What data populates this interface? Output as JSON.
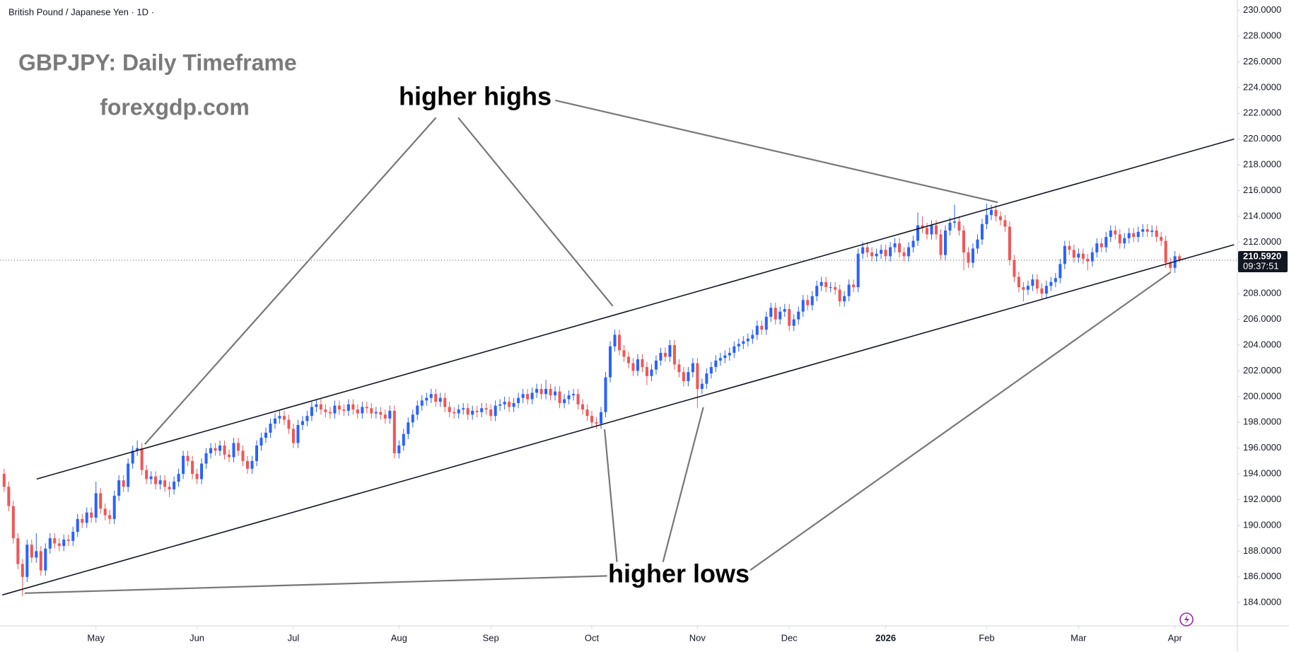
{
  "chart_data": {
    "type": "candlestick",
    "symbol": "British Pound / Japanese Yen · 1D ·",
    "title": "GBPJPY: Daily Timeframe",
    "subtitle": "forexgdp.com",
    "annotations": [
      "higher highs",
      "higher lows"
    ],
    "up_color": "#2962ff",
    "down_color": "#f05656",
    "trendline_color": "#131722",
    "open": [
      194.0,
      193.0,
      191.5,
      189.0,
      187.0,
      186.0,
      188.5,
      187.5,
      188.0,
      186.5,
      188.2,
      189.0,
      188.6,
      188.4,
      188.9,
      188.8,
      189.5,
      190.5,
      190.2,
      191.0,
      190.6,
      192.5,
      191.3,
      190.8,
      190.5,
      192.3,
      193.5,
      193.0,
      194.8,
      195.8,
      196.0,
      194.3,
      193.6,
      193.8,
      193.2,
      193.5,
      193.0,
      192.8,
      193.4,
      194.0,
      195.4,
      195.0,
      194.0,
      193.6,
      194.8,
      195.6,
      196.0,
      195.8,
      196.2,
      195.5,
      195.3,
      196.4,
      195.8,
      195.0,
      194.4,
      195.0,
      196.2,
      196.8,
      197.2,
      197.9,
      198.3,
      198.5,
      198.2,
      197.5,
      196.4,
      197.8,
      198.1,
      198.5,
      199.2,
      199.4,
      199.0,
      198.8,
      198.7,
      199.3,
      199.0,
      198.9,
      199.4,
      199.0,
      198.7,
      199.2,
      199.1,
      198.7,
      198.8,
      198.6,
      198.3,
      198.9,
      195.6,
      196.2,
      197.1,
      198.0,
      198.6,
      199.3,
      199.7,
      199.9,
      200.2,
      199.6,
      199.9,
      199.2,
      198.8,
      198.7,
      199.0,
      199.1,
      198.6,
      198.9,
      198.8,
      199.1,
      199.0,
      198.5,
      199.3,
      199.4,
      199.6,
      199.2,
      199.5,
      199.9,
      200.2,
      199.8,
      200.3,
      200.6,
      200.2,
      200.6,
      200.1,
      200.4,
      199.5,
      199.8,
      200.1,
      200.2,
      199.4,
      199.0,
      198.5,
      198.0,
      197.9,
      198.8,
      201.5,
      203.9,
      204.8,
      203.6,
      203.1,
      202.6,
      202.0,
      202.9,
      202.3,
      201.6,
      202.1,
      202.8,
      203.4,
      203.1,
      204.0,
      202.5,
      201.9,
      201.2,
      201.9,
      202.6,
      200.6,
      201.0,
      201.8,
      202.3,
      202.8,
      203.0,
      203.2,
      203.4,
      203.9,
      204.1,
      204.3,
      204.5,
      204.8,
      205.5,
      205.2,
      206.2,
      206.9,
      206.0,
      206.6,
      206.8,
      205.5,
      206.0,
      206.6,
      207.5,
      207.1,
      207.8,
      208.6,
      208.9,
      208.5,
      208.5,
      208.3,
      207.4,
      207.8,
      208.7,
      208.5,
      211.1,
      211.6,
      211.2,
      210.9,
      211.1,
      211.4,
      210.9,
      211.6,
      211.9,
      211.2,
      210.9,
      211.6,
      212.1,
      213.3,
      213.1,
      212.6,
      213.3,
      212.6,
      211.0,
      212.9,
      213.5,
      213.6,
      212.9,
      211.2,
      210.4,
      211.5,
      212.2,
      213.4,
      214.1,
      214.5,
      214.0,
      213.7,
      213.2,
      210.6,
      209.3,
      208.5,
      208.3,
      208.6,
      209.1,
      208.4,
      208.0,
      208.6,
      208.9,
      209.2,
      210.3,
      211.7,
      211.4,
      210.8,
      211.1,
      210.7,
      210.5,
      211.2,
      211.9,
      211.6,
      212.4,
      212.9,
      212.6,
      211.9,
      212.3,
      212.7,
      212.4,
      212.8,
      213.0,
      212.8,
      212.9,
      212.4,
      212.1,
      210.4,
      210.0,
      210.9
    ],
    "high": [
      194.4,
      193.4,
      191.9,
      189.4,
      187.4,
      188.9,
      188.9,
      189.4,
      188.4,
      188.6,
      189.4,
      189.4,
      189.0,
      189.3,
      189.3,
      189.9,
      190.9,
      190.9,
      191.4,
      191.4,
      193.4,
      192.9,
      191.7,
      191.2,
      192.7,
      193.9,
      193.9,
      195.2,
      196.2,
      196.6,
      196.4,
      194.7,
      194.2,
      194.2,
      193.9,
      193.9,
      193.4,
      193.8,
      194.4,
      195.8,
      195.8,
      195.4,
      194.4,
      195.2,
      196.0,
      196.4,
      196.4,
      196.6,
      196.6,
      195.9,
      196.8,
      196.8,
      196.2,
      195.4,
      195.4,
      196.6,
      197.2,
      197.6,
      198.3,
      198.7,
      198.9,
      198.9,
      198.6,
      197.9,
      198.2,
      198.5,
      198.9,
      199.6,
      199.8,
      199.8,
      199.4,
      199.2,
      199.7,
      199.7,
      199.4,
      199.8,
      199.8,
      199.4,
      199.6,
      199.6,
      199.5,
      199.2,
      199.2,
      199.0,
      199.3,
      199.3,
      196.6,
      197.5,
      198.4,
      199.0,
      199.7,
      200.1,
      200.3,
      200.6,
      200.6,
      200.3,
      200.3,
      199.6,
      199.2,
      199.4,
      199.5,
      199.5,
      199.3,
      199.3,
      199.5,
      199.5,
      199.4,
      199.7,
      199.8,
      200.0,
      200.0,
      199.9,
      200.3,
      200.6,
      200.6,
      200.7,
      201.0,
      201.0,
      201.3,
      201.0,
      200.8,
      200.8,
      200.2,
      200.5,
      200.6,
      200.6,
      199.8,
      199.4,
      198.9,
      198.4,
      199.2,
      201.9,
      204.3,
      205.2,
      205.2,
      204.0,
      203.5,
      203.0,
      203.3,
      203.3,
      202.7,
      202.5,
      203.2,
      203.8,
      203.8,
      204.4,
      204.4,
      202.9,
      202.3,
      202.3,
      203.0,
      203.0,
      201.4,
      202.2,
      202.7,
      203.2,
      203.4,
      203.6,
      203.8,
      204.3,
      204.5,
      204.7,
      204.9,
      205.2,
      205.9,
      205.9,
      206.6,
      207.3,
      207.3,
      207.0,
      207.2,
      207.2,
      206.4,
      207.0,
      207.9,
      207.9,
      208.2,
      209.0,
      209.3,
      209.3,
      208.9,
      208.9,
      208.7,
      208.2,
      209.1,
      209.1,
      211.5,
      212.0,
      212.0,
      211.6,
      211.5,
      211.8,
      211.8,
      212.0,
      212.3,
      212.3,
      211.6,
      212.0,
      212.5,
      214.3,
      214.0,
      213.5,
      213.7,
      213.7,
      213.0,
      213.3,
      213.9,
      214.9,
      214.0,
      213.3,
      211.6,
      211.9,
      212.6,
      213.8,
      215.0,
      214.9,
      214.9,
      214.4,
      214.1,
      213.6,
      211.0,
      209.7,
      208.9,
      209.0,
      209.5,
      209.5,
      208.8,
      209.0,
      209.3,
      209.6,
      210.7,
      212.1,
      212.1,
      211.8,
      211.5,
      211.5,
      211.1,
      211.6,
      212.3,
      212.3,
      212.8,
      213.3,
      213.3,
      213.0,
      212.7,
      213.1,
      213.1,
      213.2,
      213.4,
      213.4,
      213.3,
      213.3,
      212.8,
      212.5,
      210.8,
      211.3,
      211.1
    ],
    "low": [
      192.6,
      191.1,
      188.6,
      186.6,
      184.5,
      185.6,
      187.1,
      187.1,
      186.1,
      186.1,
      187.8,
      188.2,
      188.0,
      188.0,
      188.4,
      188.4,
      189.1,
      189.8,
      189.8,
      190.2,
      190.2,
      190.9,
      190.4,
      190.1,
      190.1,
      191.9,
      192.6,
      192.6,
      194.4,
      195.4,
      193.9,
      193.2,
      193.2,
      192.8,
      192.8,
      192.6,
      192.2,
      192.4,
      193.0,
      193.6,
      194.6,
      193.6,
      193.2,
      193.2,
      194.4,
      195.2,
      195.4,
      195.4,
      195.1,
      194.9,
      194.9,
      195.4,
      194.6,
      194.0,
      194.0,
      194.6,
      195.8,
      196.4,
      196.8,
      197.5,
      197.9,
      197.8,
      197.1,
      196.0,
      196.0,
      197.4,
      197.7,
      198.1,
      198.8,
      198.6,
      198.4,
      198.3,
      198.3,
      198.6,
      198.5,
      198.5,
      198.6,
      198.3,
      198.3,
      198.7,
      198.3,
      198.3,
      198.2,
      197.9,
      197.9,
      195.2,
      195.2,
      195.8,
      196.7,
      197.6,
      198.2,
      198.9,
      199.3,
      199.5,
      199.2,
      199.2,
      198.8,
      198.4,
      198.3,
      198.3,
      198.6,
      198.2,
      198.2,
      198.4,
      198.4,
      198.6,
      198.1,
      198.1,
      198.9,
      199.0,
      198.8,
      198.8,
      199.1,
      199.5,
      199.4,
      199.4,
      199.9,
      199.8,
      199.8,
      199.7,
      199.7,
      199.1,
      199.1,
      199.4,
      199.7,
      199.0,
      198.6,
      198.1,
      197.6,
      197.5,
      197.5,
      198.4,
      201.1,
      203.5,
      203.2,
      202.7,
      202.2,
      201.6,
      201.6,
      201.9,
      200.9,
      201.2,
      201.7,
      202.4,
      202.7,
      202.7,
      202.1,
      201.5,
      200.8,
      200.8,
      201.5,
      199.1,
      200.2,
      200.6,
      201.4,
      201.9,
      202.4,
      202.6,
      202.8,
      203.0,
      203.5,
      203.7,
      203.9,
      204.1,
      204.4,
      204.8,
      204.8,
      205.8,
      205.6,
      205.6,
      206.2,
      205.1,
      205.1,
      205.6,
      206.2,
      206.7,
      206.7,
      207.4,
      208.2,
      208.1,
      208.1,
      207.9,
      207.0,
      207.0,
      207.4,
      208.1,
      208.1,
      210.7,
      210.8,
      210.5,
      210.5,
      210.7,
      210.5,
      210.5,
      211.2,
      210.8,
      210.5,
      210.5,
      211.2,
      211.7,
      212.7,
      212.2,
      212.2,
      212.2,
      210.6,
      210.6,
      212.5,
      213.1,
      212.5,
      209.8,
      210.0,
      210.0,
      211.1,
      211.8,
      213.0,
      213.7,
      213.6,
      213.3,
      212.8,
      210.2,
      208.9,
      208.1,
      207.4,
      207.9,
      208.2,
      208.0,
      207.6,
      207.6,
      208.2,
      208.5,
      208.8,
      209.9,
      211.0,
      210.4,
      210.4,
      210.3,
      209.8,
      210.1,
      210.8,
      211.2,
      211.2,
      212.0,
      212.2,
      211.5,
      211.5,
      211.9,
      212.0,
      212.0,
      212.4,
      212.4,
      212.4,
      212.0,
      211.7,
      210.0,
      209.6,
      209.6,
      210.4
    ],
    "close": [
      193.0,
      191.5,
      189.0,
      187.0,
      186.0,
      188.5,
      187.5,
      188.0,
      186.5,
      188.2,
      189.0,
      188.6,
      188.4,
      188.9,
      188.8,
      189.5,
      190.5,
      190.2,
      191.0,
      190.6,
      192.5,
      191.3,
      190.8,
      190.5,
      192.3,
      193.5,
      193.0,
      194.8,
      195.8,
      196.0,
      194.3,
      193.6,
      193.8,
      193.2,
      193.5,
      193.0,
      192.8,
      193.4,
      194.0,
      195.4,
      195.0,
      194.0,
      193.6,
      194.8,
      195.6,
      196.0,
      195.8,
      196.2,
      195.5,
      195.3,
      196.4,
      195.8,
      195.0,
      194.4,
      195.0,
      196.2,
      196.8,
      197.2,
      197.9,
      198.3,
      198.5,
      198.2,
      197.5,
      196.4,
      197.8,
      198.1,
      198.5,
      199.2,
      199.4,
      199.0,
      198.8,
      198.7,
      199.3,
      199.0,
      198.9,
      199.4,
      199.0,
      198.7,
      199.2,
      199.1,
      198.7,
      198.8,
      198.6,
      198.3,
      198.9,
      195.6,
      196.2,
      197.1,
      198.0,
      198.6,
      199.3,
      199.7,
      199.9,
      200.2,
      199.6,
      199.9,
      199.2,
      198.8,
      198.7,
      199.0,
      199.1,
      198.6,
      198.9,
      198.8,
      199.1,
      199.0,
      198.5,
      199.3,
      199.4,
      199.6,
      199.2,
      199.5,
      199.9,
      200.2,
      199.8,
      200.3,
      200.6,
      200.2,
      200.6,
      200.1,
      200.4,
      199.5,
      199.8,
      200.1,
      200.2,
      199.4,
      199.0,
      198.5,
      198.0,
      197.9,
      198.8,
      201.5,
      203.9,
      204.8,
      203.6,
      203.1,
      202.6,
      202.0,
      202.9,
      202.3,
      201.6,
      202.1,
      202.8,
      203.4,
      203.1,
      204.0,
      202.5,
      201.9,
      201.2,
      201.9,
      202.6,
      200.6,
      201.0,
      201.8,
      202.3,
      202.8,
      203.0,
      203.2,
      203.4,
      203.9,
      204.1,
      204.3,
      204.5,
      204.8,
      205.5,
      205.2,
      206.2,
      206.9,
      206.0,
      206.6,
      206.8,
      205.5,
      206.0,
      206.6,
      207.5,
      207.1,
      207.8,
      208.6,
      208.9,
      208.5,
      208.5,
      208.3,
      207.4,
      207.8,
      208.7,
      208.5,
      211.1,
      211.6,
      211.2,
      210.9,
      211.1,
      211.4,
      210.9,
      211.6,
      211.9,
      211.2,
      210.9,
      211.6,
      212.1,
      213.3,
      213.1,
      212.6,
      213.3,
      212.6,
      211.0,
      212.9,
      213.5,
      213.6,
      212.9,
      211.2,
      210.4,
      211.5,
      212.2,
      213.4,
      214.1,
      214.5,
      214.0,
      213.7,
      213.2,
      210.6,
      209.3,
      208.5,
      208.3,
      208.6,
      209.1,
      208.4,
      208.0,
      208.6,
      208.9,
      209.2,
      210.3,
      211.7,
      211.4,
      210.8,
      211.1,
      210.7,
      210.5,
      211.2,
      211.9,
      211.6,
      212.4,
      212.9,
      212.6,
      211.9,
      212.3,
      212.7,
      212.4,
      212.8,
      213.0,
      212.8,
      212.9,
      212.4,
      212.1,
      210.4,
      210.0,
      210.9,
      210.592
    ],
    "xlim": [
      -0.9,
      268.6
    ],
    "xticks": [
      {
        "value": 20,
        "label": "May"
      },
      {
        "value": 42,
        "label": "Jun"
      },
      {
        "value": 63,
        "label": "Jul"
      },
      {
        "value": 86,
        "label": "Aug"
      },
      {
        "value": 106,
        "label": "Sep"
      },
      {
        "value": 128,
        "label": "Oct"
      },
      {
        "value": 151,
        "label": "Nov"
      },
      {
        "value": 171,
        "label": "Dec"
      },
      {
        "value": 192,
        "label": "2026"
      },
      {
        "value": 214,
        "label": "Feb"
      },
      {
        "value": 234,
        "label": "Mar"
      },
      {
        "value": 255,
        "label": "Apr"
      }
    ],
    "ylim": [
      182.2,
      230.8
    ],
    "yticks": [
      {
        "value": 184,
        "label": "184.0000"
      },
      {
        "value": 186,
        "label": "186.0000"
      },
      {
        "value": 188,
        "label": "188.0000"
      },
      {
        "value": 190,
        "label": "190.0000"
      },
      {
        "value": 192,
        "label": "192.0000"
      },
      {
        "value": 194,
        "label": "194.0000"
      },
      {
        "value": 196,
        "label": "196.0000"
      },
      {
        "value": 198,
        "label": "198.0000"
      },
      {
        "value": 200,
        "label": "200.0000"
      },
      {
        "value": 202,
        "label": "202.0000"
      },
      {
        "value": 204,
        "label": "204.0000"
      },
      {
        "value": 206,
        "label": "206.0000"
      },
      {
        "value": 208,
        "label": "208.0000"
      },
      {
        "value": 210,
        "label": "210.0000"
      },
      {
        "value": 212,
        "label": "212.0000"
      },
      {
        "value": 214,
        "label": "214.0000"
      },
      {
        "value": 216,
        "label": "216.0000"
      },
      {
        "value": 218,
        "label": "218.0000"
      },
      {
        "value": 220,
        "label": "220.0000"
      },
      {
        "value": 222,
        "label": "222.0000"
      },
      {
        "value": 224,
        "label": "224.0000"
      },
      {
        "value": 226,
        "label": "226.0000"
      },
      {
        "value": 228,
        "label": "228.0000"
      },
      {
        "value": 230,
        "label": "230.0000"
      }
    ],
    "last_price": {
      "value": 210.592,
      "label": "210.5920"
    },
    "countdown": "09:37:51",
    "trendlines": [
      {
        "x": [
          7.1,
          267.9
        ],
        "y": [
          193.6,
          220.0
        ]
      },
      {
        "x": [
          -0.4,
          267.9
        ],
        "y": [
          184.6,
          211.8
        ]
      }
    ]
  }
}
